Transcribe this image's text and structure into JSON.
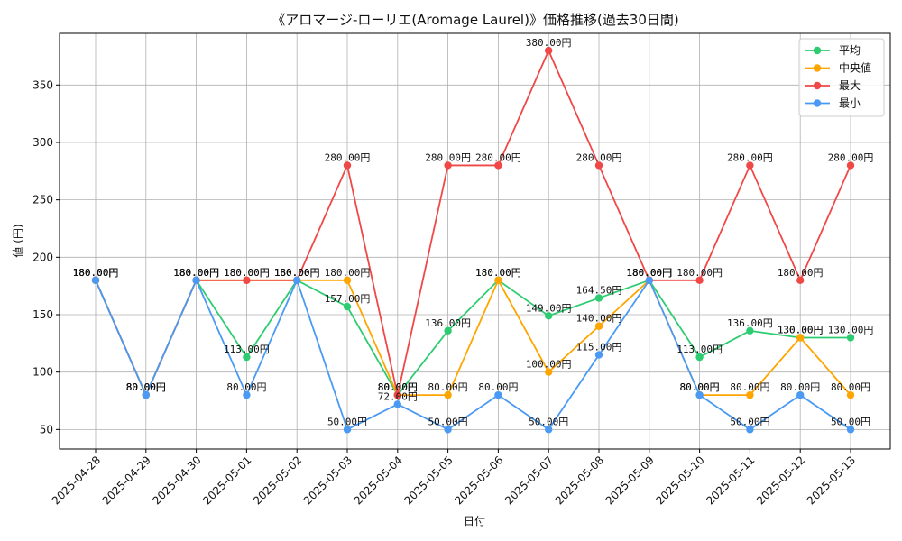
{
  "chart_data": {
    "type": "line",
    "title": "《アロマージ-ローリエ(Aromage Laurel)》価格推移(過去30日間)",
    "xlabel": "日付",
    "ylabel": "値 (円)",
    "ylim": [
      33,
      395
    ],
    "yticks": [
      50,
      100,
      150,
      200,
      250,
      300,
      350
    ],
    "grid": true,
    "legend_position": "top-right",
    "label_suffix": "円",
    "categories": [
      "2025-04-28",
      "2025-04-29",
      "2025-04-30",
      "2025-05-01",
      "2025-05-02",
      "2025-05-03",
      "2025-05-04",
      "2025-05-05",
      "2025-05-06",
      "2025-05-07",
      "2025-05-08",
      "2025-05-09",
      "2025-05-10",
      "2025-05-11",
      "2025-05-12",
      "2025-05-13"
    ],
    "series": [
      {
        "name": "平均",
        "color": "#2ecc71",
        "values": [
          180,
          80,
          180,
          113,
          180,
          157,
          80,
          136,
          180,
          149,
          164.5,
          180,
          113,
          136,
          130,
          130
        ]
      },
      {
        "name": "中央値",
        "color": "#ffa500",
        "values": [
          180,
          80,
          180,
          180,
          180,
          180,
          80,
          80,
          180,
          100,
          140,
          180,
          80,
          80,
          130,
          80
        ]
      },
      {
        "name": "最大",
        "color": "#f04747",
        "values": [
          180,
          80,
          180,
          180,
          180,
          280,
          80,
          280,
          280,
          380,
          280,
          180,
          180,
          280,
          180,
          280
        ]
      },
      {
        "name": "最小",
        "color": "#4a9af5",
        "values": [
          180,
          80,
          180,
          80,
          180,
          50,
          72,
          50,
          80,
          50,
          115,
          180,
          80,
          50,
          80,
          50
        ]
      }
    ]
  }
}
